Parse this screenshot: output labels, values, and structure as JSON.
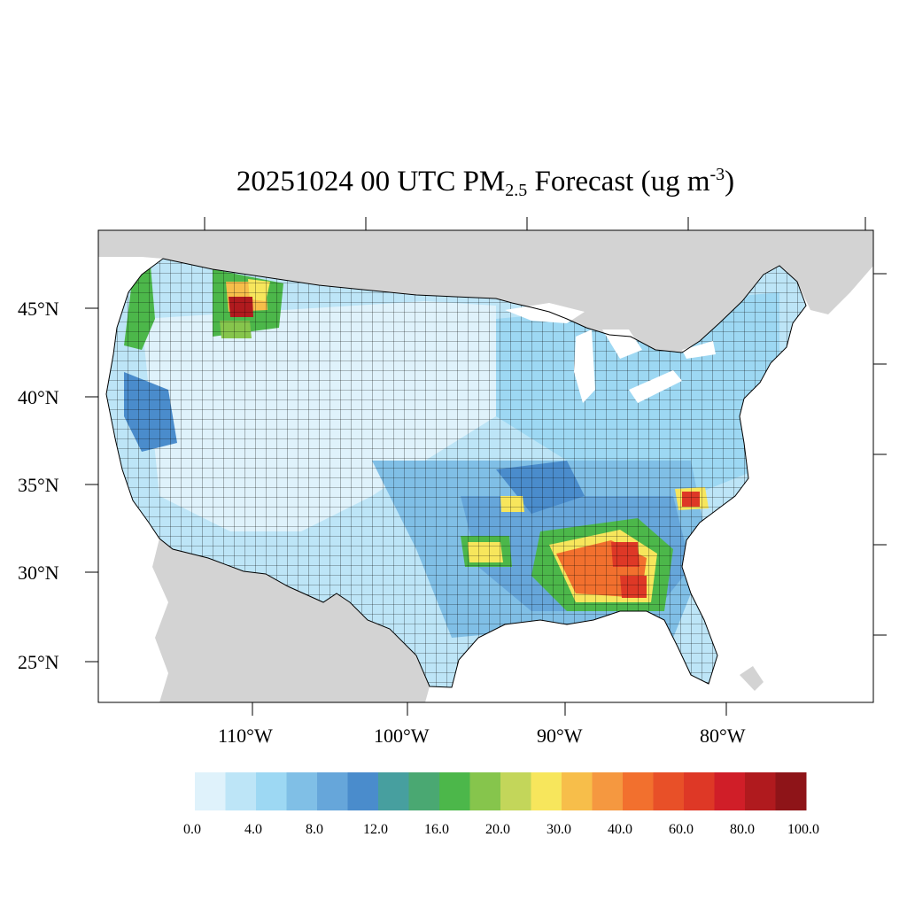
{
  "title": {
    "prefix": "20251024 00 UTC PM",
    "sub": "2.5",
    "middle": " Forecast (ug m",
    "sup": "-3",
    "suffix": ")"
  },
  "lat_labels": [
    "45°N",
    "40°N",
    "35°N",
    "30°N",
    "25°N"
  ],
  "lon_labels": [
    "110°W",
    "100°W",
    "90°W",
    "80°W"
  ],
  "colorbar": {
    "colors": [
      "#dff2fb",
      "#bde5f7",
      "#9dd8f3",
      "#80bfe6",
      "#66a6da",
      "#4a8ccc",
      "#479f9f",
      "#4aa872",
      "#4cb74a",
      "#86c54c",
      "#c3d65a",
      "#f7e65c",
      "#f7be4a",
      "#f59840",
      "#f2702e",
      "#e85028",
      "#de3826",
      "#d01e28",
      "#b01a1e",
      "#8e1418"
    ],
    "tick_labels": [
      "0.0",
      "4.0",
      "8.0",
      "12.0",
      "16.0",
      "20.0",
      "30.0",
      "40.0",
      "60.0",
      "80.0",
      "100.0"
    ]
  },
  "colors": {
    "land_outside": "#d3d3d3",
    "water": "#ffffff",
    "county_border": "#000000"
  }
}
